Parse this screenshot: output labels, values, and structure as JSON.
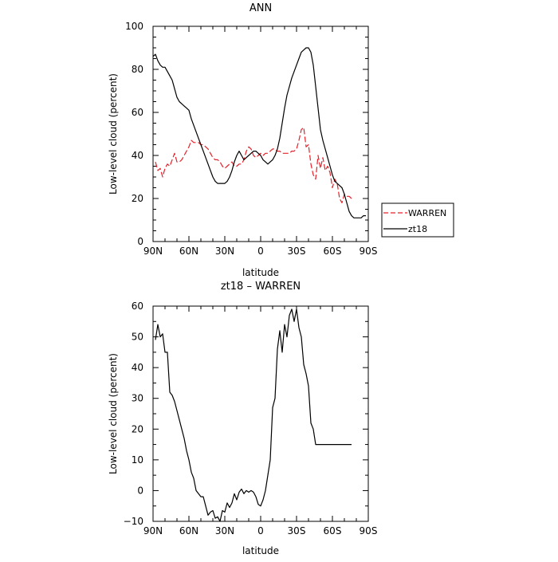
{
  "chart_data": [
    {
      "type": "line",
      "title": "ANN",
      "xlabel": "latitude",
      "ylabel": "Low-level cloud (percent)",
      "xlim": [
        90,
        -90
      ],
      "ylim": [
        0,
        100
      ],
      "x_ticks": [
        90,
        60,
        30,
        0,
        -30,
        -60,
        -90
      ],
      "x_tick_labels": [
        "90N",
        "60N",
        "30N",
        "0",
        "30S",
        "60S",
        "90S"
      ],
      "y_ticks": [
        0,
        20,
        40,
        60,
        80,
        100
      ],
      "y_tick_labels": [
        "0",
        "20",
        "40",
        "60",
        "80",
        "100"
      ],
      "grid": false,
      "legend_position": "right",
      "series": [
        {
          "name": "WARREN",
          "color": "#e8202a",
          "dash": "dashed",
          "x": [
            88,
            86,
            84,
            82,
            80,
            78,
            76,
            74,
            72,
            70,
            68,
            66,
            64,
            62,
            60,
            58,
            56,
            54,
            52,
            50,
            48,
            46,
            44,
            42,
            40,
            38,
            36,
            34,
            32,
            30,
            28,
            26,
            24,
            22,
            20,
            18,
            16,
            14,
            12,
            10,
            8,
            6,
            4,
            2,
            0,
            -2,
            -4,
            -6,
            -8,
            -10,
            -12,
            -14,
            -16,
            -18,
            -20,
            -22,
            -24,
            -26,
            -28,
            -30,
            -32,
            -34,
            -36,
            -38,
            -40,
            -42,
            -44,
            -46,
            -48,
            -50,
            -52,
            -54,
            -56,
            -58,
            -60,
            -62,
            -64,
            -66,
            -68,
            -70,
            -72,
            -74,
            -76
          ],
          "y": [
            37,
            33,
            34,
            30,
            34,
            36,
            35,
            38,
            41,
            37,
            37,
            38,
            40,
            42,
            44,
            47,
            46,
            46,
            46,
            45,
            45,
            44,
            43,
            41,
            39,
            38,
            38,
            37,
            35,
            34,
            35,
            36,
            37,
            35,
            35,
            36,
            36,
            38,
            42,
            44,
            43,
            40,
            39,
            40,
            41,
            40,
            41,
            41,
            42,
            43,
            43,
            42,
            42,
            41,
            41,
            41,
            41,
            42,
            42,
            43,
            47,
            52,
            53,
            44,
            45,
            36,
            31,
            29,
            40,
            34,
            39,
            33,
            35,
            32,
            25,
            29,
            27,
            20,
            18,
            22,
            21,
            21,
            20
          ]
        },
        {
          "name": "zt18",
          "color": "#000000",
          "dash": "solid",
          "x": [
            90,
            88,
            86,
            84,
            82,
            80,
            78,
            76,
            74,
            72,
            70,
            68,
            66,
            64,
            62,
            60,
            58,
            56,
            54,
            52,
            50,
            48,
            46,
            44,
            42,
            40,
            38,
            36,
            34,
            32,
            30,
            28,
            26,
            24,
            22,
            20,
            18,
            16,
            14,
            12,
            10,
            8,
            6,
            4,
            2,
            0,
            -2,
            -4,
            -6,
            -8,
            -10,
            -12,
            -14,
            -16,
            -18,
            -20,
            -22,
            -24,
            -26,
            -28,
            -30,
            -32,
            -34,
            -36,
            -38,
            -40,
            -42,
            -44,
            -46,
            -48,
            -50,
            -52,
            -54,
            -56,
            -58,
            -60,
            -62,
            -64,
            -66,
            -68,
            -70,
            -72,
            -74,
            -76,
            -78,
            -80,
            -82,
            -84,
            -86,
            -88
          ],
          "y": [
            86,
            87,
            84,
            82,
            81,
            81,
            79,
            77,
            75,
            71,
            67,
            65,
            64,
            63,
            62,
            61,
            57,
            54,
            51,
            48,
            45,
            42,
            39,
            36,
            33,
            30,
            28,
            27,
            27,
            27,
            27,
            28,
            30,
            33,
            37,
            40,
            42,
            40,
            38,
            39,
            40,
            41,
            42,
            42,
            41,
            40,
            38,
            37,
            36,
            37,
            38,
            40,
            43,
            48,
            55,
            62,
            68,
            72,
            76,
            79,
            82,
            85,
            88,
            89,
            90,
            90,
            88,
            82,
            72,
            62,
            52,
            47,
            43,
            39,
            35,
            31,
            28,
            27,
            26,
            25,
            22,
            18,
            14,
            12,
            11,
            11,
            11,
            11,
            12,
            12
          ]
        }
      ]
    },
    {
      "type": "line",
      "title": "zt18 – WARREN",
      "xlabel": "latitude",
      "ylabel": "Low-level cloud (percent)",
      "xlim": [
        90,
        -90
      ],
      "ylim": [
        -10,
        60
      ],
      "x_ticks": [
        90,
        60,
        30,
        0,
        -30,
        -60,
        -90
      ],
      "x_tick_labels": [
        "90N",
        "60N",
        "30N",
        "0",
        "30S",
        "60S",
        "90S"
      ],
      "y_ticks": [
        -10,
        0,
        10,
        20,
        30,
        40,
        50,
        60
      ],
      "y_tick_labels": [
        "−10",
        "0",
        "10",
        "20",
        "30",
        "40",
        "50",
        "60"
      ],
      "grid": false,
      "series": [
        {
          "color": "#000000",
          "dash": "solid",
          "x": [
            88,
            86,
            84,
            82,
            80,
            78,
            76,
            74,
            72,
            70,
            68,
            66,
            64,
            62,
            60,
            58,
            56,
            54,
            52,
            50,
            48,
            46,
            44,
            42,
            40,
            38,
            36,
            34,
            32,
            30,
            28,
            26,
            24,
            22,
            20,
            18,
            16,
            14,
            12,
            10,
            8,
            6,
            4,
            2,
            0,
            -2,
            -4,
            -6,
            -8,
            -10,
            -12,
            -14,
            -16,
            -18,
            -20,
            -22,
            -24,
            -26,
            -28,
            -30,
            -32,
            -34,
            -36,
            -38,
            -40,
            -42,
            -44,
            -46,
            -48,
            -50,
            -52,
            -54,
            -56,
            -58,
            -60,
            -62,
            -64,
            -66,
            -68,
            -70,
            -72,
            -74,
            -76
          ],
          "y": [
            49,
            54,
            50,
            51,
            45,
            45,
            32,
            31,
            29,
            26,
            23,
            20,
            17,
            13,
            10,
            6,
            4,
            0,
            -1,
            -2,
            -2,
            -5,
            -8,
            -7,
            -6.5,
            -9,
            -8.5,
            -10,
            -6.5,
            -7,
            -4,
            -5.5,
            -4,
            -1,
            -3,
            -0.5,
            0.5,
            -1,
            0,
            -0.5,
            0,
            -0.5,
            -2,
            -4.5,
            -5,
            -3,
            0,
            5,
            10,
            27,
            30,
            46,
            52,
            45,
            54,
            50,
            57,
            59,
            55,
            59,
            53,
            50,
            41,
            38,
            34,
            22,
            20,
            15,
            15,
            15,
            15,
            15,
            15,
            15,
            15,
            15,
            15,
            15,
            15,
            15,
            15,
            15,
            15
          ]
        }
      ]
    }
  ]
}
